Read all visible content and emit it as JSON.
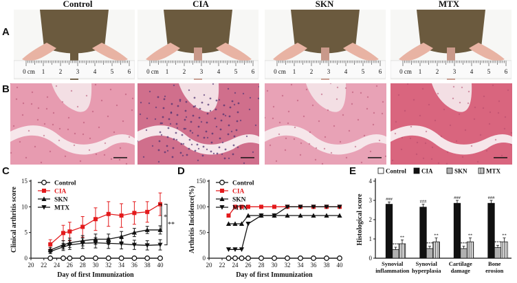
{
  "figure": {
    "group_titles": [
      "Control",
      "CIA",
      "SKN",
      "MTX"
    ],
    "panel_letters": [
      "A",
      "B",
      "C",
      "D",
      "E"
    ],
    "ruler_labels": [
      "0 cm",
      "1",
      "2",
      "3",
      "4",
      "5",
      "6"
    ]
  },
  "colors": {
    "fur": "#6b5a3e",
    "skin": "#e8b3a3",
    "tissue": "#e896a8",
    "cia": "#e31a1c",
    "black": "#111111",
    "grey_bar": "#b0b0b0"
  },
  "chart_data": [
    {
      "id": "C",
      "type": "line",
      "ylabel": "Clinical arthritis score",
      "xlabel": "Day of first Immunization",
      "xlim": [
        20,
        40
      ],
      "ylim": [
        0,
        15
      ],
      "xticks": [
        20,
        22,
        24,
        26,
        28,
        30,
        32,
        34,
        36,
        38,
        40
      ],
      "yticks": [
        0,
        5,
        10,
        15
      ],
      "x": [
        23,
        25,
        26,
        28,
        30,
        32,
        34,
        36,
        38,
        40
      ],
      "series": [
        {
          "name": "Control",
          "marker": "circle",
          "color": "#111111",
          "values": [
            0,
            0,
            0,
            0,
            0,
            0,
            0,
            0,
            0,
            0
          ],
          "err": [
            0,
            0,
            0,
            0,
            0,
            0,
            0,
            0,
            0,
            0
          ]
        },
        {
          "name": "CIA",
          "marker": "square",
          "color": "#e31a1c",
          "values": [
            2.7,
            4.9,
            5.2,
            6.1,
            7.6,
            8.6,
            8.3,
            8.8,
            9.0,
            10.5
          ],
          "err": [
            0.9,
            1.5,
            1.8,
            2.0,
            2.2,
            2.4,
            2.3,
            2.2,
            2.0,
            2.2
          ]
        },
        {
          "name": "SKN",
          "marker": "triangle-up",
          "color": "#111111",
          "values": [
            1.6,
            2.6,
            3.0,
            3.4,
            3.7,
            3.7,
            4.2,
            5.0,
            5.5,
            5.5
          ],
          "err": [
            0.5,
            0.8,
            0.9,
            1.0,
            1.0,
            1.0,
            1.0,
            0.8,
            0.7,
            0.8
          ]
        },
        {
          "name": "MTX",
          "marker": "triangle-down",
          "color": "#111111",
          "values": [
            1.3,
            2.2,
            2.6,
            2.9,
            3.0,
            2.9,
            2.8,
            2.6,
            2.5,
            2.6
          ],
          "err": [
            0.4,
            0.7,
            0.9,
            1.0,
            1.0,
            1.0,
            1.0,
            0.9,
            0.9,
            1.0
          ]
        }
      ],
      "annotations": [
        "*",
        "**"
      ]
    },
    {
      "id": "D",
      "type": "line",
      "ylabel": "Arthritis Incidence(%)",
      "xlabel": "Day of first Immunization",
      "xlim": [
        20,
        40
      ],
      "ylim": [
        0,
        150
      ],
      "xticks": [
        20,
        22,
        24,
        26,
        28,
        30,
        32,
        34,
        36,
        38,
        40
      ],
      "yticks": [
        0,
        50,
        100,
        150
      ],
      "series": [
        {
          "name": "Control",
          "marker": "circle",
          "color": "#111111",
          "x": [
            23,
            24,
            25,
            26,
            28,
            30,
            32,
            34,
            36,
            38,
            40
          ],
          "values": [
            0,
            0,
            0,
            0,
            0,
            0,
            0,
            0,
            0,
            0,
            0
          ]
        },
        {
          "name": "CIA",
          "marker": "square",
          "color": "#e31a1c",
          "x": [
            23,
            24,
            25,
            26,
            28,
            30,
            32,
            34,
            36,
            38,
            40
          ],
          "values": [
            83,
            100,
            100,
            100,
            100,
            100,
            100,
            100,
            100,
            100,
            100
          ]
        },
        {
          "name": "SKN",
          "marker": "triangle-up",
          "color": "#111111",
          "x": [
            23,
            24,
            25,
            26,
            28,
            30,
            32,
            34,
            36,
            38,
            40
          ],
          "values": [
            67,
            67,
            67,
            83,
            83,
            83,
            83,
            83,
            83,
            83,
            83
          ]
        },
        {
          "name": "MTX",
          "marker": "triangle-down",
          "color": "#111111",
          "x": [
            23,
            24,
            25,
            26,
            28,
            30,
            32,
            34,
            36,
            38,
            40
          ],
          "values": [
            17,
            17,
            17,
            67,
            83,
            83,
            100,
            100,
            100,
            100,
            100
          ]
        }
      ]
    },
    {
      "id": "E",
      "type": "bar",
      "ylabel": "Histological score",
      "ylim": [
        0,
        4
      ],
      "yticks": [
        0,
        1,
        2,
        3,
        4
      ],
      "categories": [
        [
          "Synovial",
          "inflammation"
        ],
        [
          "Synovial",
          "hyperplasia"
        ],
        [
          "Cartilage",
          "damage"
        ],
        [
          "Bone",
          "erosion"
        ]
      ],
      "series": [
        {
          "name": "Control",
          "fill": "white",
          "values": [
            0,
            0,
            0,
            0
          ],
          "err": [
            0,
            0,
            0,
            0
          ],
          "sig": [
            "",
            "",
            "",
            ""
          ]
        },
        {
          "name": "CIA",
          "fill": "black",
          "values": [
            2.8,
            2.65,
            2.85,
            2.85
          ],
          "err": [
            0.12,
            0.15,
            0.15,
            0.15
          ],
          "sig": [
            "###",
            "###",
            "###",
            "###"
          ]
        },
        {
          "name": "SKN",
          "fill": "grey",
          "values": [
            0.45,
            0.5,
            0.5,
            0.55
          ],
          "err": [
            0.12,
            0.12,
            0.12,
            0.12
          ],
          "sig": [
            "***",
            "***",
            "***",
            "***"
          ]
        },
        {
          "name": "MTX",
          "fill": "hatched",
          "values": [
            0.75,
            0.85,
            0.85,
            0.85
          ],
          "err": [
            0.2,
            0.2,
            0.2,
            0.2
          ],
          "sig": [
            "**",
            "**",
            "**",
            "**"
          ]
        }
      ]
    }
  ]
}
